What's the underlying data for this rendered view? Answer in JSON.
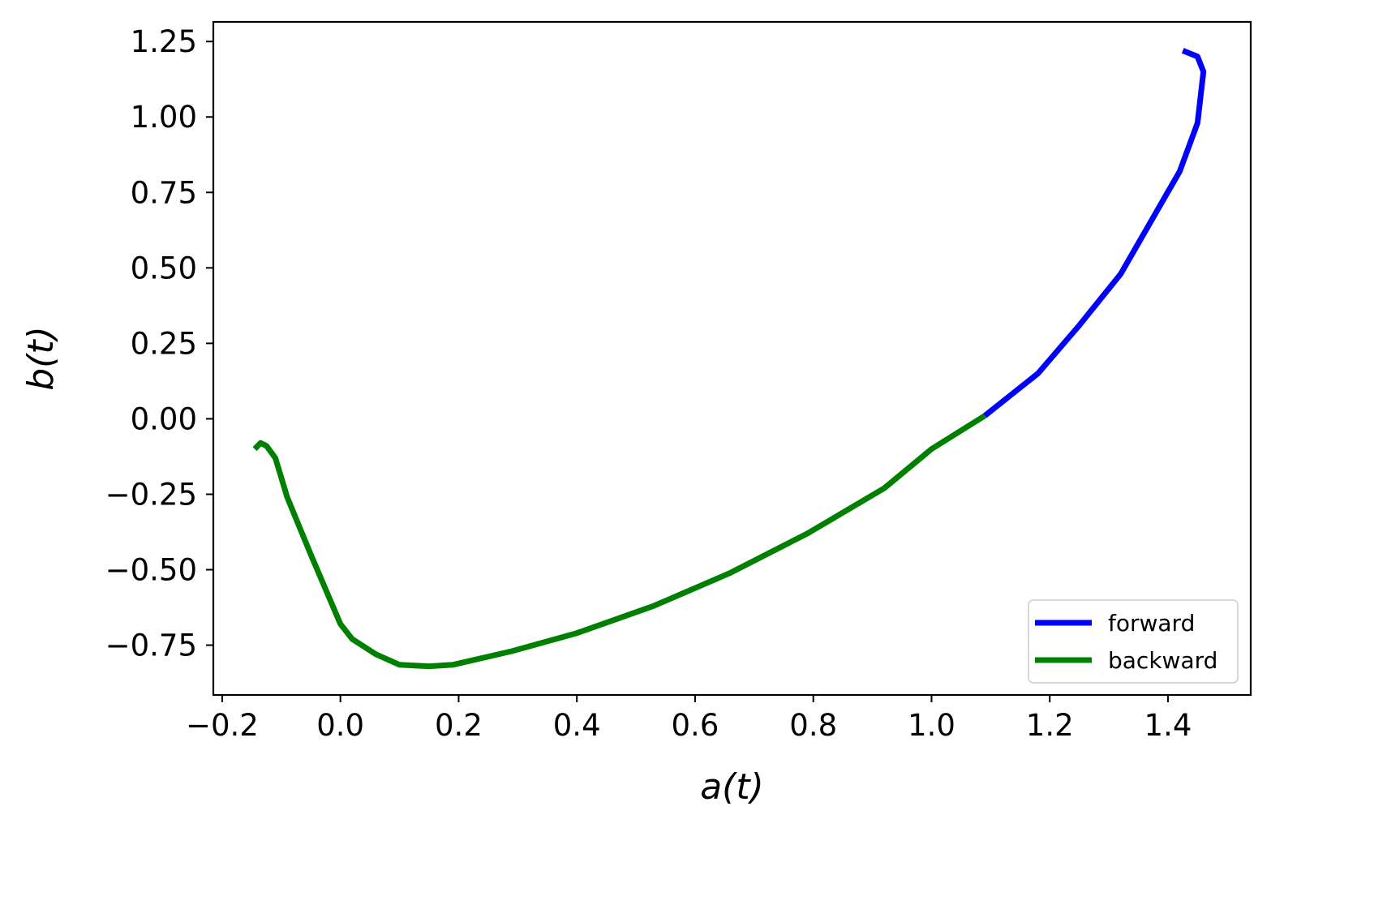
{
  "chart_data": {
    "type": "line",
    "xlabel": "a(t)",
    "ylabel": "b(t)",
    "xlim": [
      -0.215,
      1.54
    ],
    "ylim": [
      -0.915,
      1.315
    ],
    "x_ticks": [
      {
        "value": -0.2,
        "label": "−0.2"
      },
      {
        "value": 0.0,
        "label": "0.0"
      },
      {
        "value": 0.2,
        "label": "0.2"
      },
      {
        "value": 0.4,
        "label": "0.4"
      },
      {
        "value": 0.6,
        "label": "0.6"
      },
      {
        "value": 0.8,
        "label": "0.8"
      },
      {
        "value": 1.0,
        "label": "1.0"
      },
      {
        "value": 1.2,
        "label": "1.2"
      },
      {
        "value": 1.4,
        "label": "1.4"
      }
    ],
    "y_ticks": [
      {
        "value": -0.75,
        "label": "−0.75"
      },
      {
        "value": -0.5,
        "label": "−0.50"
      },
      {
        "value": -0.25,
        "label": "−0.25"
      },
      {
        "value": 0.0,
        "label": "0.00"
      },
      {
        "value": 0.25,
        "label": "0.25"
      },
      {
        "value": 0.5,
        "label": "0.50"
      },
      {
        "value": 0.75,
        "label": "0.75"
      },
      {
        "value": 1.0,
        "label": "1.00"
      },
      {
        "value": 1.25,
        "label": "1.25"
      }
    ],
    "grid": false,
    "legend_position": "lower-right",
    "series": [
      {
        "name": "forward",
        "color": "#0000ff",
        "points": [
          [
            1.425,
            1.22
          ],
          [
            1.45,
            1.2
          ],
          [
            1.46,
            1.15
          ],
          [
            1.45,
            0.98
          ],
          [
            1.42,
            0.82
          ],
          [
            1.37,
            0.65
          ],
          [
            1.32,
            0.48
          ],
          [
            1.25,
            0.31
          ],
          [
            1.18,
            0.15
          ],
          [
            1.09,
            0.01
          ]
        ]
      },
      {
        "name": "backward",
        "color": "#008000",
        "points": [
          [
            1.09,
            0.01
          ],
          [
            1.0,
            -0.1
          ],
          [
            0.92,
            -0.23
          ],
          [
            0.79,
            -0.38
          ],
          [
            0.66,
            -0.51
          ],
          [
            0.53,
            -0.62
          ],
          [
            0.4,
            -0.71
          ],
          [
            0.29,
            -0.77
          ],
          [
            0.19,
            -0.815
          ],
          [
            0.15,
            -0.82
          ],
          [
            0.1,
            -0.815
          ],
          [
            0.06,
            -0.78
          ],
          [
            0.02,
            -0.73
          ],
          [
            0.0,
            -0.68
          ],
          [
            -0.05,
            -0.45
          ],
          [
            -0.09,
            -0.26
          ],
          [
            -0.11,
            -0.13
          ],
          [
            -0.125,
            -0.09
          ],
          [
            -0.135,
            -0.08
          ],
          [
            -0.145,
            -0.1
          ]
        ]
      }
    ]
  }
}
